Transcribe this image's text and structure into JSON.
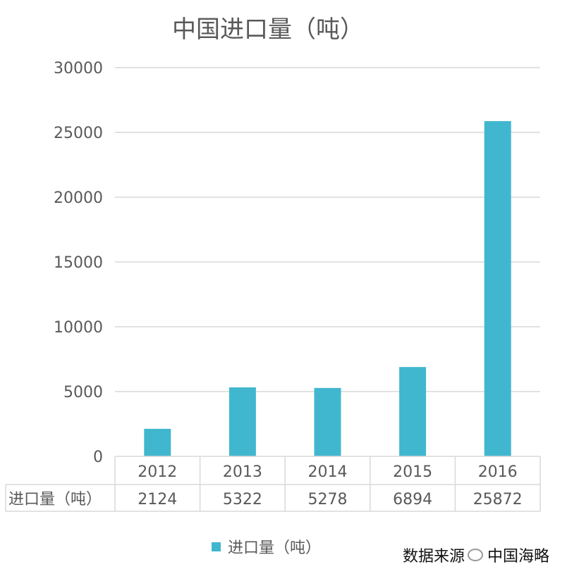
{
  "chart_data": {
    "type": "bar",
    "title": "中国进口量（吨）",
    "categories": [
      "2012",
      "2013",
      "2014",
      "2015",
      "2016"
    ],
    "series": [
      {
        "name": "进口量（吨）",
        "values": [
          2124,
          5322,
          5278,
          6894,
          25872
        ],
        "color": "#41B7CF"
      }
    ],
    "ylim": [
      0,
      30000
    ],
    "yticks": [
      0,
      5000,
      10000,
      15000,
      20000,
      25000,
      30000
    ],
    "grid": true,
    "legend": "bottom",
    "data_table": true
  },
  "legend_label": "进口量（吨）",
  "watermark": {
    "text": "数据来源",
    "source": "中国海略",
    "icon": "wechat-icon"
  }
}
